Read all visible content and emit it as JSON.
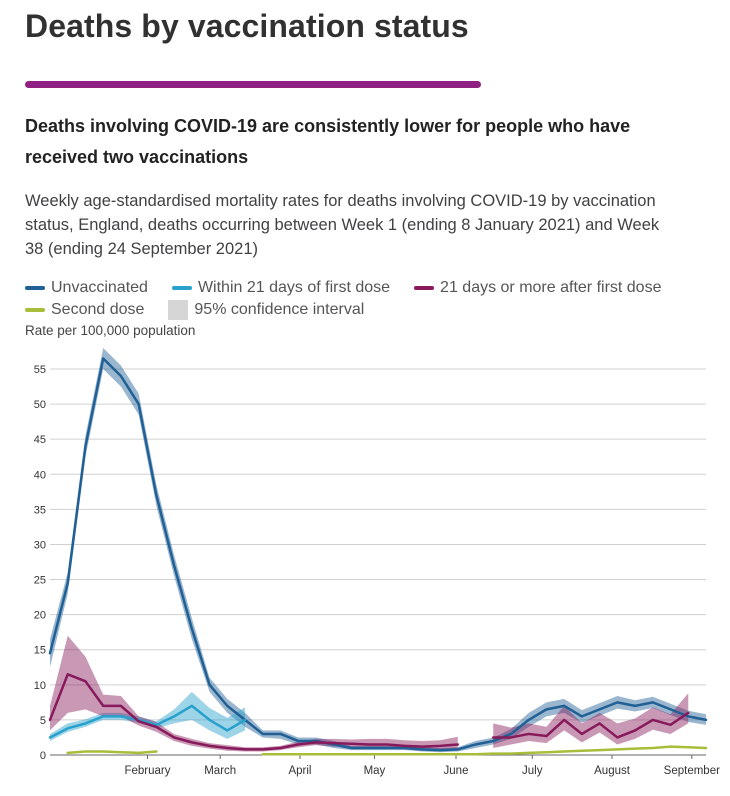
{
  "header": {
    "title": "Deaths by vaccination status",
    "headline": "Deaths involving COVID-19 are consistently lower for people who have received two vaccinations",
    "subtitle": "Weekly age-standardised mortality rates for deaths involving COVID-19 by vaccination status, England, deaths occurring between Week 1 (ending 8 January 2021) and Week 38 (ending 24 September 2021)",
    "accent": "#902082"
  },
  "legend": {
    "items": [
      {
        "label": "Unvaccinated",
        "color": "#206095"
      },
      {
        "label": "Within 21 days of first dose",
        "color": "#27a0cc"
      },
      {
        "label": "21 days or more after first dose",
        "color": "#871a5b"
      },
      {
        "label": "Second dose",
        "color": "#a8bd3a"
      },
      {
        "label": "95% confidence interval",
        "color": "#d6d6d6"
      }
    ]
  },
  "chart_data": {
    "type": "line",
    "ylabel": "Rate per 100,000 population",
    "ylim": [
      0,
      55
    ],
    "yticks": [
      0,
      5,
      10,
      15,
      20,
      25,
      30,
      35,
      40,
      45,
      50,
      55
    ],
    "xlim": [
      1,
      38
    ],
    "grid": true,
    "legend_position": "top",
    "x_ticks": [
      {
        "label": "February",
        "week": 6.5
      },
      {
        "label": "March",
        "week": 10.6
      },
      {
        "label": "April",
        "week": 15.1
      },
      {
        "label": "May",
        "week": 19.3
      },
      {
        "label": "June",
        "week": 23.9
      },
      {
        "label": "July",
        "week": 28.2
      },
      {
        "label": "August",
        "week": 32.7
      },
      {
        "label": "September",
        "week": 37.2
      }
    ],
    "series": [
      {
        "name": "Unvaccinated",
        "color": "#206095",
        "x": [
          1,
          2,
          3,
          4,
          5,
          6,
          7,
          8,
          9,
          10,
          11,
          12,
          13,
          14,
          15,
          16,
          17,
          18,
          19,
          20,
          21,
          22,
          23,
          24,
          25,
          26,
          27,
          28,
          29,
          30,
          31,
          32,
          33,
          34,
          35,
          36,
          37,
          38
        ],
        "values": [
          14.5,
          24.5,
          44,
          56.5,
          54,
          50,
          37,
          27,
          18,
          10,
          7,
          5,
          3,
          3,
          2,
          2,
          1.5,
          1,
          1,
          1,
          1,
          0.8,
          0.7,
          0.8,
          1.5,
          2,
          3,
          5,
          6.5,
          7,
          5.5,
          6.5,
          7.5,
          7,
          7.5,
          6.5,
          5.5,
          5
        ],
        "lower": [
          12.5,
          23,
          42.5,
          55,
          52.5,
          48.5,
          35.5,
          25.5,
          16.5,
          9,
          6,
          4,
          2.5,
          2.3,
          1.5,
          1.5,
          1,
          0.7,
          0.7,
          0.7,
          0.7,
          0.5,
          0.4,
          0.5,
          1,
          1.5,
          2.3,
          4,
          5.5,
          6,
          4.6,
          5.6,
          6.6,
          6.2,
          6.7,
          5.7,
          4.7,
          4.3
        ],
        "upper": [
          16.5,
          26,
          45.5,
          58,
          55.5,
          51.5,
          38.5,
          28.5,
          19.5,
          11,
          8,
          6,
          3.5,
          3.5,
          2.5,
          2.5,
          2,
          1.3,
          1.3,
          1.3,
          1.3,
          1.1,
          1,
          1.1,
          2,
          2.5,
          3.7,
          6,
          7.5,
          8,
          6.4,
          7.4,
          8.4,
          7.8,
          8.3,
          7.3,
          6.3,
          5.8
        ]
      },
      {
        "name": "Within 21 days of first dose",
        "color": "#27a0cc",
        "x": [
          1,
          2,
          3,
          4,
          5,
          6,
          7,
          8,
          9,
          10,
          11,
          12,
          13
        ],
        "values": [
          2.5,
          3.8,
          4.5,
          5.5,
          5.5,
          5,
          4.3,
          5.5,
          7,
          5,
          3.5,
          5,
          null
        ],
        "lower": [
          2,
          3.3,
          4,
          5,
          5,
          4.6,
          3.8,
          4.5,
          5,
          3.5,
          2.3,
          3.5,
          null
        ],
        "upper": [
          3,
          4.5,
          5.1,
          6,
          6,
          5.5,
          4.8,
          6.5,
          9,
          6.7,
          5.3,
          6.8,
          null
        ]
      },
      {
        "name": "21 days or more after first dose",
        "color": "#871a5b",
        "x": [
          1,
          2,
          3,
          4,
          5,
          6,
          7,
          8,
          9,
          10,
          11,
          12,
          13,
          14,
          15,
          16,
          17,
          18,
          19,
          20,
          21,
          22,
          23,
          24,
          25,
          26,
          27,
          28,
          29,
          30,
          31,
          32,
          33,
          34,
          35,
          36,
          37,
          38
        ],
        "values": [
          5,
          11.5,
          10.5,
          7,
          7,
          4.8,
          4,
          2.5,
          1.8,
          1.3,
          1,
          0.8,
          0.8,
          1,
          1.5,
          1.8,
          1.7,
          1.6,
          1.5,
          1.5,
          1.3,
          1.2,
          1.3,
          1.5,
          null,
          2.5,
          2.5,
          3,
          2.7,
          5,
          3,
          4.5,
          2.5,
          3.5,
          5,
          4.3,
          6,
          null
        ],
        "lower": [
          3.5,
          6,
          6.5,
          5.5,
          5.5,
          4.2,
          3.3,
          2,
          1.3,
          0.9,
          0.6,
          0.5,
          0.5,
          0.7,
          1.1,
          1.4,
          1.2,
          1.2,
          1,
          1,
          0.8,
          0.6,
          0.6,
          0.7,
          null,
          1,
          1.5,
          2,
          1.7,
          3.5,
          1.8,
          3.2,
          1.5,
          2.3,
          3.6,
          3,
          4.5,
          null
        ],
        "upper": [
          7,
          17,
          14,
          8.6,
          8.4,
          5.5,
          4.7,
          3,
          2.3,
          1.7,
          1.4,
          1.1,
          1.1,
          1.3,
          1.9,
          2.3,
          2.3,
          2.2,
          2.3,
          2.3,
          2.1,
          2,
          2.1,
          2.6,
          null,
          4.5,
          3.9,
          4.5,
          4,
          7,
          4.5,
          6,
          4.5,
          5.2,
          6.8,
          5.8,
          8.8,
          null
        ]
      },
      {
        "name": "Second dose",
        "color": "#a8bd3a",
        "x": [
          1,
          2,
          3,
          4,
          5,
          6,
          7,
          8,
          9,
          10,
          11,
          12,
          13,
          14,
          15,
          16,
          17,
          18,
          19,
          20,
          21,
          22,
          23,
          24,
          25,
          26,
          27,
          28,
          29,
          30,
          31,
          32,
          33,
          34,
          35,
          36,
          37,
          38
        ],
        "values": [
          null,
          0.3,
          0.5,
          0.5,
          0.4,
          0.3,
          0.5,
          null,
          null,
          null,
          null,
          null,
          0.1,
          0.1,
          0.1,
          0.1,
          0.1,
          0.1,
          0.1,
          0.1,
          0.1,
          0.1,
          0.1,
          0.1,
          0.1,
          0.2,
          0.2,
          0.3,
          0.4,
          0.5,
          0.6,
          0.7,
          0.8,
          0.9,
          1,
          1.2,
          1.1,
          1
        ]
      }
    ]
  }
}
